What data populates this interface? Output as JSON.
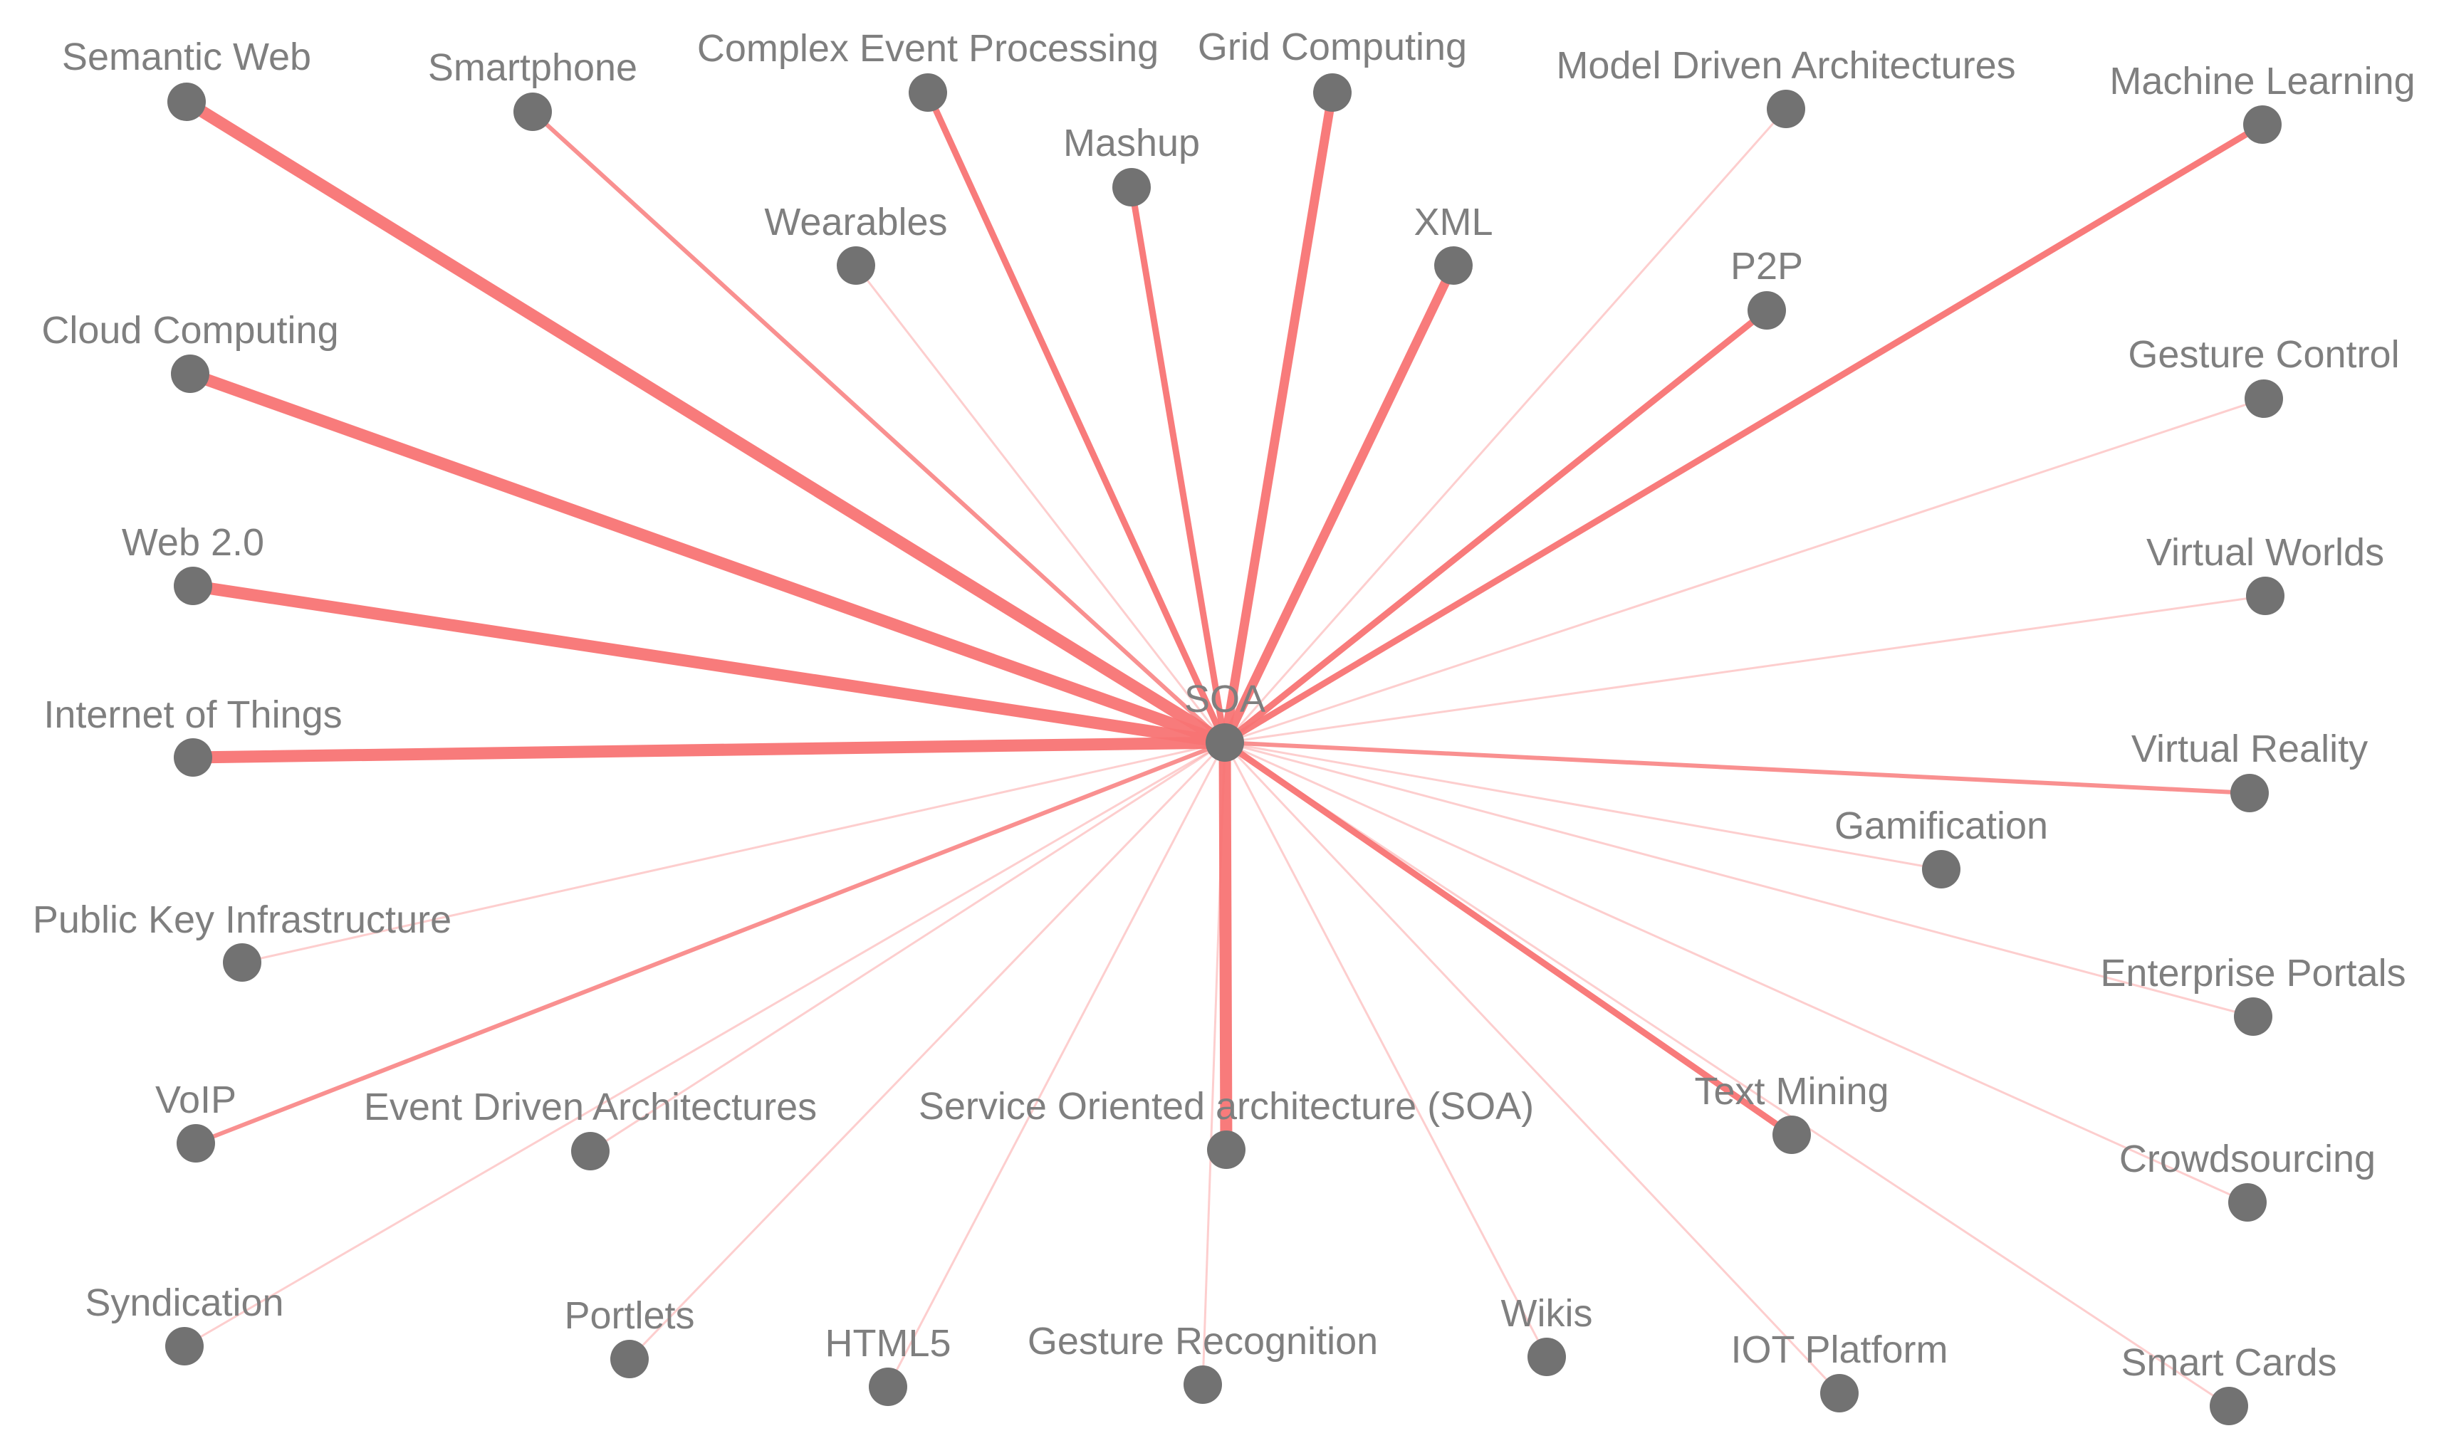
{
  "network": {
    "center": {
      "id": "soa",
      "label": "SOA"
    },
    "edge_color": "#f87474",
    "node_color": "#727272",
    "label_color": "#7f7f7f",
    "nodes": [
      {
        "id": "semantic-web",
        "label": "Semantic Web",
        "weight": 5
      },
      {
        "id": "smartphone",
        "label": "Smartphone",
        "weight": 2
      },
      {
        "id": "complex-event-processing",
        "label": "Complex Event Processing",
        "weight": 3
      },
      {
        "id": "grid-computing",
        "label": "Grid Computing",
        "weight": 4
      },
      {
        "id": "model-driven-architectures",
        "label": "Model Driven Architectures",
        "weight": 1
      },
      {
        "id": "machine-learning",
        "label": "Machine Learning",
        "weight": 3
      },
      {
        "id": "mashup",
        "label": "Mashup",
        "weight": 3
      },
      {
        "id": "wearables",
        "label": "Wearables",
        "weight": 1
      },
      {
        "id": "xml",
        "label": "XML",
        "weight": 4
      },
      {
        "id": "p2p",
        "label": "P2P",
        "weight": 3
      },
      {
        "id": "cloud-computing",
        "label": "Cloud Computing",
        "weight": 5
      },
      {
        "id": "gesture-control",
        "label": "Gesture Control",
        "weight": 1
      },
      {
        "id": "web-2-0",
        "label": "Web 2.0",
        "weight": 5
      },
      {
        "id": "virtual-worlds",
        "label": "Virtual Worlds",
        "weight": 1
      },
      {
        "id": "internet-of-things",
        "label": "Internet of Things",
        "weight": 5
      },
      {
        "id": "virtual-reality",
        "label": "Virtual Reality",
        "weight": 2
      },
      {
        "id": "gamification",
        "label": "Gamification",
        "weight": 1
      },
      {
        "id": "public-key-infrastructure",
        "label": "Public Key Infrastructure",
        "weight": 1
      },
      {
        "id": "enterprise-portals",
        "label": "Enterprise Portals",
        "weight": 1
      },
      {
        "id": "voip",
        "label": "VoIP",
        "weight": 2
      },
      {
        "id": "event-driven-architectures",
        "label": "Event Driven Architectures",
        "weight": 1
      },
      {
        "id": "service-oriented-architecture",
        "label": "Service Oriented architecture (SOA)",
        "weight": 5
      },
      {
        "id": "text-mining",
        "label": "Text Mining",
        "weight": 3
      },
      {
        "id": "crowdsourcing",
        "label": "Crowdsourcing",
        "weight": 1
      },
      {
        "id": "syndication",
        "label": "Syndication",
        "weight": 1
      },
      {
        "id": "portlets",
        "label": "Portlets",
        "weight": 1
      },
      {
        "id": "html5",
        "label": "HTML5",
        "weight": 1
      },
      {
        "id": "gesture-recognition",
        "label": "Gesture Recognition",
        "weight": 1
      },
      {
        "id": "wikis",
        "label": "Wikis",
        "weight": 1
      },
      {
        "id": "iot-platform",
        "label": "IOT Platform",
        "weight": 1
      },
      {
        "id": "smart-cards",
        "label": "Smart Cards",
        "weight": 1
      }
    ]
  }
}
